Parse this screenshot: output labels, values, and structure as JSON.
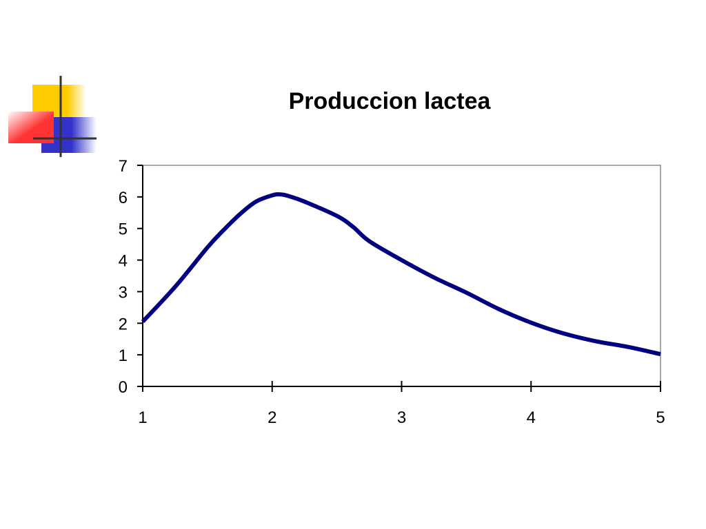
{
  "slide": {
    "decoration_icon": "color-blocks-logo",
    "colors": {
      "yellow": "#ffcc00",
      "red": "#ff3333",
      "blue": "#3333cc",
      "line": "#000080"
    }
  },
  "chart_data": {
    "type": "line",
    "title": "Produccion lactea",
    "xlabel": "",
    "ylabel": "",
    "xlim": [
      1,
      5
    ],
    "ylim": [
      0,
      7
    ],
    "x_ticks": [
      1,
      2,
      3,
      4,
      5
    ],
    "y_ticks": [
      0,
      1,
      2,
      3,
      4,
      5,
      6,
      7
    ],
    "grid": false,
    "legend": "none",
    "series": [
      {
        "color": "#000080",
        "x": [
          1.0,
          1.25,
          1.5,
          1.625,
          1.75,
          1.875,
          2.0,
          2.0625,
          2.125,
          2.25,
          2.5,
          2.625,
          2.75,
          3.0,
          3.25,
          3.5,
          3.75,
          4.0,
          4.25,
          4.5,
          4.75,
          5.0
        ],
        "y": [
          2.05,
          3.15,
          4.4,
          4.95,
          5.45,
          5.85,
          6.05,
          6.08,
          6.03,
          5.85,
          5.4,
          5.05,
          4.6,
          4.0,
          3.45,
          2.97,
          2.45,
          2.02,
          1.68,
          1.43,
          1.25,
          1.02
        ]
      }
    ]
  }
}
